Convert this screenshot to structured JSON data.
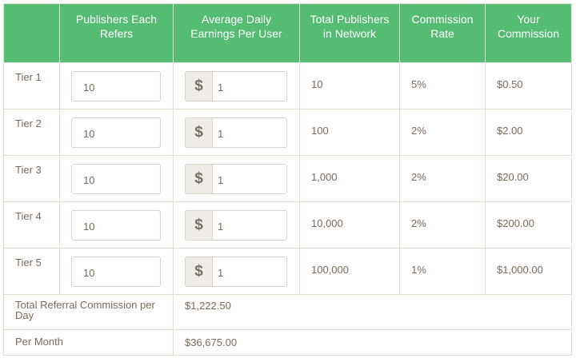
{
  "headers": {
    "tier": "",
    "refers": "Publishers Each Refers",
    "earnings": "Average Daily Earnings Per User",
    "total": "Total Publishers in Network",
    "rate": "Commission Rate",
    "commission": "Your Commission"
  },
  "currency_symbol": "$",
  "tiers": [
    {
      "label": "Tier 1",
      "refers": "10",
      "earnings": "1",
      "total": "10",
      "rate": "5%",
      "commission": "$0.50"
    },
    {
      "label": "Tier 2",
      "refers": "10",
      "earnings": "1",
      "total": "100",
      "rate": "2%",
      "commission": "$2.00"
    },
    {
      "label": "Tier 3",
      "refers": "10",
      "earnings": "1",
      "total": "1,000",
      "rate": "2%",
      "commission": "$20.00"
    },
    {
      "label": "Tier 4",
      "refers": "10",
      "earnings": "1",
      "total": "10,000",
      "rate": "2%",
      "commission": "$200.00"
    },
    {
      "label": "Tier 5",
      "refers": "10",
      "earnings": "1",
      "total": "100,000",
      "rate": "1%",
      "commission": "$1,000.00"
    }
  ],
  "totals": {
    "daily_label": "Total Referral Commission per Day",
    "daily_value": "$1,222.50",
    "monthly_label": "Per Month",
    "monthly_value": "$36,675.00"
  },
  "colors": {
    "header_bg": "#55bd72",
    "header_text": "#ffffff",
    "body_text": "#7a6a5a",
    "border": "#e6dccd"
  }
}
